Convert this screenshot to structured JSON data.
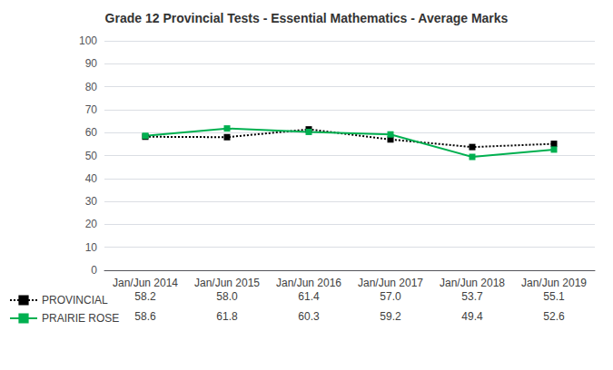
{
  "chart_data": {
    "type": "line",
    "title": "Grade 12 Provincial Tests - Essential Mathematics - Average Marks",
    "categories": [
      "Jan/Jun 2014",
      "Jan/Jun 2015",
      "Jan/Jun 2016",
      "Jan/Jun 2017",
      "Jan/Jun 2018",
      "Jan/Jun 2019"
    ],
    "series": [
      {
        "name": "PROVINCIAL",
        "color": "#000000",
        "line_style": "dotted",
        "marker": "square",
        "values": [
          58.2,
          58.0,
          61.4,
          57.0,
          53.7,
          55.1
        ],
        "value_labels": [
          "58.2",
          "58.0",
          "61.4",
          "57.0",
          "53.7",
          "55.1"
        ]
      },
      {
        "name": "PRAIRIE ROSE",
        "color": "#00b050",
        "line_style": "solid",
        "marker": "square",
        "values": [
          58.6,
          61.8,
          60.3,
          59.2,
          49.4,
          52.6
        ],
        "value_labels": [
          "58.6",
          "61.8",
          "60.3",
          "59.2",
          "49.4",
          "52.6"
        ]
      }
    ],
    "ylim": [
      0,
      100
    ],
    "yticks": [
      0,
      10,
      20,
      30,
      40,
      50,
      60,
      70,
      80,
      90,
      100
    ],
    "grid": true,
    "legend": "bottom left",
    "data_labels": true
  }
}
